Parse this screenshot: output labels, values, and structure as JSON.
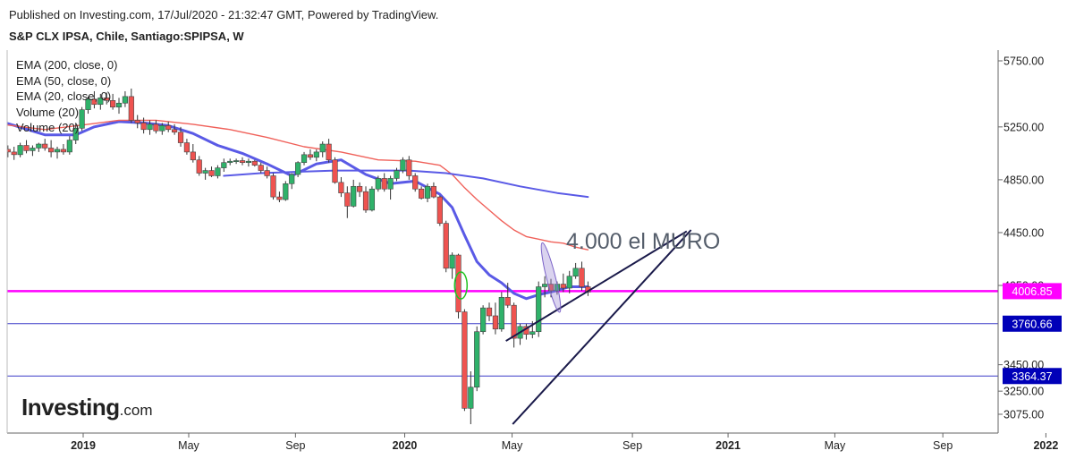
{
  "header": {
    "published": "Published on Investing.com, 17/Jul/2020 - 21:32:47 GMT, Powered by TradingView.",
    "symbol": "S&P CLX IPSA, Chile, Santiago:SPIPSA, W"
  },
  "legend": [
    "EMA (200, close, 0)",
    "EMA (50, close, 0)",
    "EMA (20, close, 0)",
    "Volume (20)",
    "Volume (20)"
  ],
  "logo": {
    "main": "Investing",
    "suffix": ".com"
  },
  "annotation": {
    "text": "4.000 el MURO"
  },
  "colors": {
    "up": "#26a69a",
    "up_green": "#2fb26a",
    "down": "#ef5350",
    "ema20": "#5a5ae6",
    "ema50": "#f0615a",
    "ema200": "#5a5ae6",
    "magenta": "#ff00ff",
    "blue_line": "#3c3cc8",
    "badge_blue": "#0000b8",
    "trend": "#1a1a4a"
  },
  "chart_data": {
    "type": "candlestick",
    "timeframe": "W",
    "y_axis": {
      "ticks": [
        5750,
        5250,
        4850,
        4450,
        4050,
        3450,
        3250,
        3075
      ],
      "tick_labels": [
        "5750.00",
        "5250.00",
        "4850.00",
        "4450.00",
        "4050.00",
        "3450.00",
        "3250.00",
        "3075.00"
      ],
      "range": [
        2990,
        5820
      ]
    },
    "x_axis": {
      "ticks": [
        {
          "label": "2019",
          "t": 0.0,
          "bold": true
        },
        {
          "label": "May",
          "t": 17.1,
          "bold": false
        },
        {
          "label": "Sep",
          "t": 34.4,
          "bold": false
        },
        {
          "label": "2020",
          "t": 52.1,
          "bold": true
        },
        {
          "label": "May",
          "t": 69.5,
          "bold": false
        },
        {
          "label": "Sep",
          "t": 89.0,
          "bold": false
        },
        {
          "label": "2021",
          "t": 104.5,
          "bold": true
        },
        {
          "label": "May",
          "t": 121.8,
          "bold": false
        },
        {
          "label": "Sep",
          "t": 139.3,
          "bold": false
        },
        {
          "label": "2022",
          "t": 156.0,
          "bold": true
        }
      ],
      "unit": "weeks from 2019-01-01"
    },
    "horizontal_levels": [
      {
        "value": 4006.85,
        "label": "4006.85",
        "style": "magenta"
      },
      {
        "value": 3760.66,
        "label": "3760.66",
        "style": "blue"
      },
      {
        "value": 3364.37,
        "label": "3364.37",
        "style": "blue"
      }
    ],
    "trendlines": [
      {
        "from": {
          "t": 69.6,
          "y": 3000
        },
        "to": {
          "t": 98.5,
          "y": 4470
        }
      },
      {
        "from": {
          "t": 68.5,
          "y": 3630
        },
        "to": {
          "t": 97.8,
          "y": 4460
        }
      }
    ],
    "candles": [
      [
        -13.2,
        5120,
        5150,
        5000,
        5080
      ],
      [
        -12.2,
        5080,
        5110,
        5020,
        5060
      ],
      [
        -11.2,
        5060,
        5100,
        5000,
        5040
      ],
      [
        -10.2,
        5040,
        5130,
        5020,
        5110
      ],
      [
        -9.2,
        5110,
        5150,
        5050,
        5070
      ],
      [
        -8.2,
        5070,
        5110,
        5030,
        5090
      ],
      [
        -7.2,
        5090,
        5130,
        5060,
        5120
      ],
      [
        -6.2,
        5120,
        5160,
        5070,
        5090
      ],
      [
        -5.2,
        5090,
        5150,
        5020,
        5060
      ],
      [
        -4.2,
        5060,
        5100,
        5010,
        5080
      ],
      [
        -3.2,
        5080,
        5120,
        5040,
        5060
      ],
      [
        -2.2,
        5060,
        5180,
        5040,
        5150
      ],
      [
        -1.2,
        5150,
        5280,
        5120,
        5240
      ],
      [
        -0.2,
        5240,
        5400,
        5220,
        5380
      ],
      [
        0.8,
        5380,
        5480,
        5350,
        5460
      ],
      [
        1.8,
        5460,
        5520,
        5390,
        5420
      ],
      [
        2.8,
        5420,
        5500,
        5380,
        5470
      ],
      [
        3.8,
        5470,
        5510,
        5420,
        5450
      ],
      [
        4.8,
        5450,
        5500,
        5380,
        5400
      ],
      [
        5.8,
        5400,
        5470,
        5350,
        5430
      ],
      [
        6.8,
        5430,
        5520,
        5400,
        5480
      ],
      [
        7.8,
        5480,
        5540,
        5280,
        5300
      ],
      [
        8.8,
        5300,
        5340,
        5240,
        5280
      ],
      [
        9.8,
        5280,
        5320,
        5200,
        5230
      ],
      [
        10.8,
        5230,
        5300,
        5190,
        5270
      ],
      [
        11.8,
        5270,
        5300,
        5200,
        5220
      ],
      [
        12.8,
        5220,
        5280,
        5190,
        5260
      ],
      [
        13.8,
        5260,
        5290,
        5210,
        5230
      ],
      [
        14.8,
        5230,
        5270,
        5190,
        5210
      ],
      [
        15.8,
        5210,
        5250,
        5100,
        5130
      ],
      [
        16.8,
        5130,
        5160,
        5040,
        5060
      ],
      [
        17.8,
        5060,
        5120,
        4980,
        5000
      ],
      [
        18.8,
        5000,
        5030,
        4880,
        4900
      ],
      [
        19.8,
        4900,
        4940,
        4850,
        4920
      ],
      [
        20.8,
        4920,
        4950,
        4870,
        4880
      ],
      [
        21.8,
        4880,
        4960,
        4860,
        4940
      ],
      [
        22.8,
        4940,
        5010,
        4910,
        4980
      ],
      [
        23.8,
        4980,
        5010,
        4960,
        4990
      ],
      [
        24.8,
        4990,
        5010,
        4970,
        4995
      ],
      [
        25.8,
        4995,
        5020,
        4960,
        4980
      ],
      [
        26.8,
        4980,
        5010,
        4950,
        4990
      ],
      [
        27.8,
        4990,
        5000,
        4950,
        4960
      ],
      [
        28.8,
        4960,
        4980,
        4900,
        4920
      ],
      [
        29.8,
        4920,
        4950,
        4860,
        4880
      ],
      [
        30.8,
        4880,
        4900,
        4700,
        4720
      ],
      [
        31.8,
        4720,
        4760,
        4680,
        4700
      ],
      [
        32.8,
        4700,
        4840,
        4690,
        4820
      ],
      [
        33.8,
        4820,
        4900,
        4780,
        4890
      ],
      [
        34.8,
        4890,
        4990,
        4870,
        4980
      ],
      [
        35.8,
        4980,
        5060,
        4960,
        5040
      ],
      [
        36.8,
        5040,
        5080,
        5000,
        5020
      ],
      [
        37.8,
        5020,
        5080,
        4990,
        5060
      ],
      [
        38.8,
        5060,
        5140,
        5020,
        5120
      ],
      [
        39.8,
        5120,
        5160,
        4980,
        5000
      ],
      [
        40.8,
        5000,
        5020,
        4820,
        4830
      ],
      [
        41.8,
        4830,
        4870,
        4720,
        4750
      ],
      [
        42.8,
        4750,
        4800,
        4560,
        4650
      ],
      [
        43.8,
        4650,
        4850,
        4640,
        4800
      ],
      [
        44.8,
        4800,
        4830,
        4720,
        4760
      ],
      [
        45.8,
        4760,
        4800,
        4600,
        4620
      ],
      [
        46.8,
        4620,
        4800,
        4610,
        4780
      ],
      [
        47.8,
        4780,
        4880,
        4760,
        4860
      ],
      [
        48.8,
        4860,
        4900,
        4760,
        4780
      ],
      [
        49.8,
        4780,
        4880,
        4700,
        4860
      ],
      [
        50.8,
        4860,
        4940,
        4840,
        4920
      ],
      [
        51.8,
        4920,
        5020,
        4900,
        5000
      ],
      [
        52.8,
        5000,
        5030,
        4850,
        4880
      ],
      [
        53.8,
        4880,
        4900,
        4760,
        4780
      ],
      [
        54.8,
        4780,
        4800,
        4700,
        4710
      ],
      [
        55.8,
        4710,
        4820,
        4680,
        4800
      ],
      [
        56.8,
        4800,
        4830,
        4710,
        4720
      ],
      [
        57.8,
        4720,
        4730,
        4500,
        4520
      ],
      [
        58.8,
        4520,
        4540,
        4150,
        4180
      ],
      [
        59.8,
        4180,
        4300,
        4100,
        4280
      ],
      [
        60.8,
        4280,
        4290,
        3800,
        3850
      ],
      [
        61.8,
        3850,
        3870,
        3100,
        3120
      ],
      [
        62.8,
        3120,
        3400,
        3000,
        3280
      ],
      [
        63.8,
        3280,
        3740,
        3250,
        3700
      ],
      [
        64.8,
        3700,
        3900,
        3680,
        3880
      ],
      [
        65.8,
        3880,
        3920,
        3780,
        3820
      ],
      [
        66.8,
        3820,
        3920,
        3680,
        3720
      ],
      [
        67.8,
        3720,
        4000,
        3700,
        3960
      ],
      [
        68.8,
        3960,
        4070,
        3880,
        3900
      ],
      [
        69.8,
        3900,
        3920,
        3580,
        3650
      ],
      [
        70.8,
        3650,
        3760,
        3600,
        3740
      ],
      [
        71.8,
        3740,
        3760,
        3640,
        3680
      ],
      [
        72.8,
        3680,
        3780,
        3650,
        3700
      ],
      [
        73.8,
        3700,
        4080,
        3660,
        4040
      ],
      [
        74.8,
        4040,
        4120,
        3960,
        4060
      ],
      [
        75.8,
        4060,
        4100,
        3960,
        4010
      ],
      [
        76.8,
        4010,
        4080,
        3980,
        4060
      ],
      [
        77.8,
        4060,
        4140,
        4000,
        4030
      ],
      [
        78.8,
        4030,
        4160,
        3990,
        4120
      ],
      [
        79.8,
        4120,
        4220,
        4100,
        4180
      ],
      [
        80.8,
        4180,
        4230,
        4010,
        4040
      ],
      [
        81.8,
        4040,
        4080,
        3970,
        4000
      ]
    ],
    "series": [
      {
        "name": "EMA (20, close, 0)",
        "color": "#5a5ae6",
        "points": [
          [
            -13.2,
            5290
          ],
          [
            -6.2,
            5190
          ],
          [
            -1.2,
            5190
          ],
          [
            1.8,
            5250
          ],
          [
            5.8,
            5290
          ],
          [
            9.8,
            5280
          ],
          [
            13.8,
            5260
          ],
          [
            17.8,
            5200
          ],
          [
            21.8,
            5110
          ],
          [
            25.8,
            5050
          ],
          [
            29.8,
            4970
          ],
          [
            33.8,
            4880
          ],
          [
            37.8,
            4970
          ],
          [
            41.8,
            5000
          ],
          [
            45.8,
            4890
          ],
          [
            49.8,
            4820
          ],
          [
            53.8,
            4840
          ],
          [
            57.8,
            4740
          ],
          [
            59.8,
            4640
          ],
          [
            61.8,
            4430
          ],
          [
            63.8,
            4230
          ],
          [
            65.8,
            4130
          ],
          [
            67.8,
            4070
          ],
          [
            69.8,
            3990
          ],
          [
            71.8,
            3950
          ],
          [
            73.8,
            3980
          ],
          [
            75.8,
            4000
          ],
          [
            78.8,
            4040
          ],
          [
            81.8,
            4040
          ]
        ]
      },
      {
        "name": "EMA (50, close, 0)",
        "color": "#f0615a",
        "points": [
          [
            -13.2,
            5270
          ],
          [
            -6.2,
            5230
          ],
          [
            0.8,
            5270
          ],
          [
            5.8,
            5300
          ],
          [
            11.8,
            5300
          ],
          [
            17.8,
            5270
          ],
          [
            23.8,
            5230
          ],
          [
            29.8,
            5170
          ],
          [
            35.8,
            5100
          ],
          [
            41.8,
            5060
          ],
          [
            47.8,
            5000
          ],
          [
            53.8,
            4990
          ],
          [
            57.8,
            4960
          ],
          [
            59.8,
            4890
          ],
          [
            61.8,
            4790
          ],
          [
            63.8,
            4700
          ],
          [
            65.8,
            4620
          ],
          [
            67.8,
            4540
          ],
          [
            69.8,
            4470
          ],
          [
            71.8,
            4420
          ],
          [
            73.8,
            4400
          ],
          [
            75.8,
            4380
          ],
          [
            77.8,
            4370
          ],
          [
            79.8,
            4340
          ],
          [
            81.8,
            4320
          ]
        ]
      },
      {
        "name": "EMA (200, close, 0)",
        "color": "#5a5ae6",
        "points": [
          [
            22.8,
            4880
          ],
          [
            28.8,
            4900
          ],
          [
            34.8,
            4910
          ],
          [
            40.8,
            4920
          ],
          [
            46.8,
            4920
          ],
          [
            52.8,
            4920
          ],
          [
            58.8,
            4900
          ],
          [
            64.8,
            4860
          ],
          [
            70.8,
            4800
          ],
          [
            76.8,
            4750
          ],
          [
            81.8,
            4720
          ]
        ]
      }
    ]
  }
}
